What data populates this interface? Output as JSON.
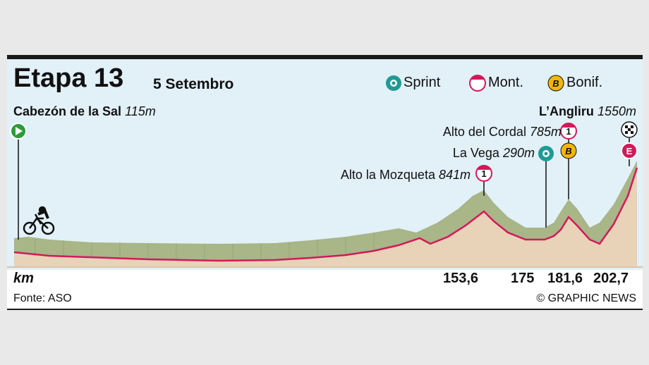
{
  "header": {
    "title": "Etapa 13",
    "date": "5 Setembro"
  },
  "legend": {
    "sprint": "Sprint",
    "mountain": "Mont.",
    "bonus": "Bonif.",
    "bonus_letter": "B"
  },
  "start": {
    "name": "Cabezón de la Sal",
    "altitude": "115m"
  },
  "finish": {
    "name": "L’Angliru",
    "altitude": "1550m",
    "marker_letter": "E"
  },
  "points": {
    "mozqueta_name": "Alto la Mozqueta",
    "mozqueta_alt": "841m",
    "mozqueta_cat": "1",
    "vega_name": "La Vega",
    "vega_alt": "290m",
    "cordal_name": "Alto del Cordal",
    "cordal_alt": "785m",
    "cordal_cat": "1",
    "bonus_letter": "B"
  },
  "axis": {
    "unit": "km",
    "marks": [
      "153,6",
      "175",
      "181,6",
      "202,7"
    ]
  },
  "footer": {
    "source": "Fonte: ASO",
    "credit": "© GRAPHIC NEWS"
  },
  "colors": {
    "sky": "#e2f0f8",
    "terrain_top": "#a8b688",
    "terrain_side": "#e8d2b8",
    "route_line": "#d2195a",
    "start_green": "#2e9b3a",
    "sprint_teal": "#1f9a94",
    "mountain_red": "#d2195a",
    "bonus_yellow": "#f2b705"
  }
}
